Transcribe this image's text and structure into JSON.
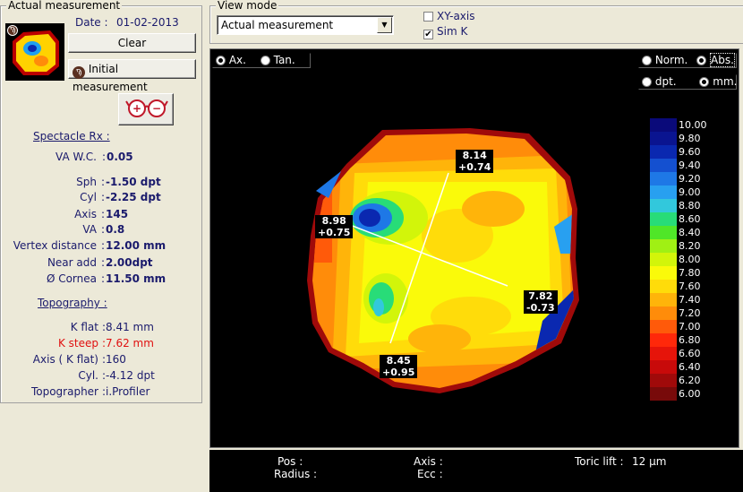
{
  "actual": {
    "title": "Actual measurement",
    "date_label": "Date :",
    "date_value": "01-02-2013",
    "clear_label": "Clear",
    "initial_label": "Initial measurement",
    "spectacle_heading": "Spectacle Rx :",
    "va_wc_label": "VA W.C.",
    "va_wc_value": "0.05",
    "rows": [
      {
        "label": "Sph",
        "value": "-1.50 dpt"
      },
      {
        "label": "Cyl",
        "value": "-2.25 dpt"
      },
      {
        "label": "Axis",
        "value": "145"
      },
      {
        "label": "VA",
        "value": "0.8"
      },
      {
        "label": "Vertex distance",
        "value": "12.00 mm"
      },
      {
        "label": "Near add",
        "value": "2.00dpt"
      },
      {
        "label": "Ø Cornea",
        "value": "11.50 mm"
      }
    ],
    "topography_heading": "Topography :",
    "topo_rows": [
      {
        "label": "K flat",
        "value": "8.41 mm",
        "color": "#1a1a6c"
      },
      {
        "label": "K steep",
        "value": "7.62 mm",
        "color": "#e01010"
      },
      {
        "label": "Axis ( K flat)",
        "value": "160",
        "color": "#1a1a6c"
      },
      {
        "label": "Cyl.",
        "value": "-4.12 dpt",
        "color": "#1a1a6c"
      },
      {
        "label": "Topographer",
        "value": "i.Profiler",
        "color": "#1a1a6c"
      }
    ]
  },
  "view": {
    "title": "View mode",
    "select_value": "Actual measurement",
    "xy_axis_label": "XY-axis",
    "xy_axis_checked": false,
    "simk_label": "Sim K",
    "simk_checked": true
  },
  "map": {
    "ax_label": "Ax.",
    "ax_on": true,
    "tan_label": "Tan.",
    "tan_on": false,
    "norm_label": "Norm.",
    "norm_on": false,
    "abs_label": "Abs.",
    "abs_on": true,
    "dpt_label": "dpt.",
    "dpt_on": false,
    "mm_label": "mm.",
    "mm_on": true,
    "tags": [
      {
        "id": "tag-top",
        "r": "8.14",
        "d": "+0.74"
      },
      {
        "id": "tag-left",
        "r": "8.98",
        "d": "+0.75"
      },
      {
        "id": "tag-right",
        "r": "7.82",
        "d": "-0.73"
      },
      {
        "id": "tag-bottom",
        "r": "8.45",
        "d": "+0.95"
      }
    ],
    "scale": [
      {
        "v": "10.00",
        "c": "#0a0a7a"
      },
      {
        "v": "9.80",
        "c": "#0a1490"
      },
      {
        "v": "9.60",
        "c": "#0a28b0"
      },
      {
        "v": "9.40",
        "c": "#1450d0"
      },
      {
        "v": "9.20",
        "c": "#1e78e6"
      },
      {
        "v": "9.00",
        "c": "#28a0f0"
      },
      {
        "v": "8.80",
        "c": "#32c8dc"
      },
      {
        "v": "8.60",
        "c": "#28dc78"
      },
      {
        "v": "8.40",
        "c": "#50e628"
      },
      {
        "v": "8.20",
        "c": "#a0f014"
      },
      {
        "v": "8.00",
        "c": "#d2f50a"
      },
      {
        "v": "7.80",
        "c": "#fafa0a"
      },
      {
        "v": "7.60",
        "c": "#ffdc0a"
      },
      {
        "v": "7.40",
        "c": "#ffb40a"
      },
      {
        "v": "7.20",
        "c": "#ff8c0a"
      },
      {
        "v": "7.00",
        "c": "#ff5a0a"
      },
      {
        "v": "6.80",
        "c": "#ff280a"
      },
      {
        "v": "6.60",
        "c": "#e6140a"
      },
      {
        "v": "6.40",
        "c": "#c80a0a"
      },
      {
        "v": "6.20",
        "c": "#a00a0a"
      },
      {
        "v": "6.00",
        "c": "#780a0a"
      }
    ]
  },
  "status": {
    "pos_label": "Pos :",
    "radius_label": "Radius :",
    "axis_label": "Axis :",
    "ecc_label": "Ecc :",
    "toric_label": "Toric lift :",
    "toric_value": "12 μm"
  }
}
